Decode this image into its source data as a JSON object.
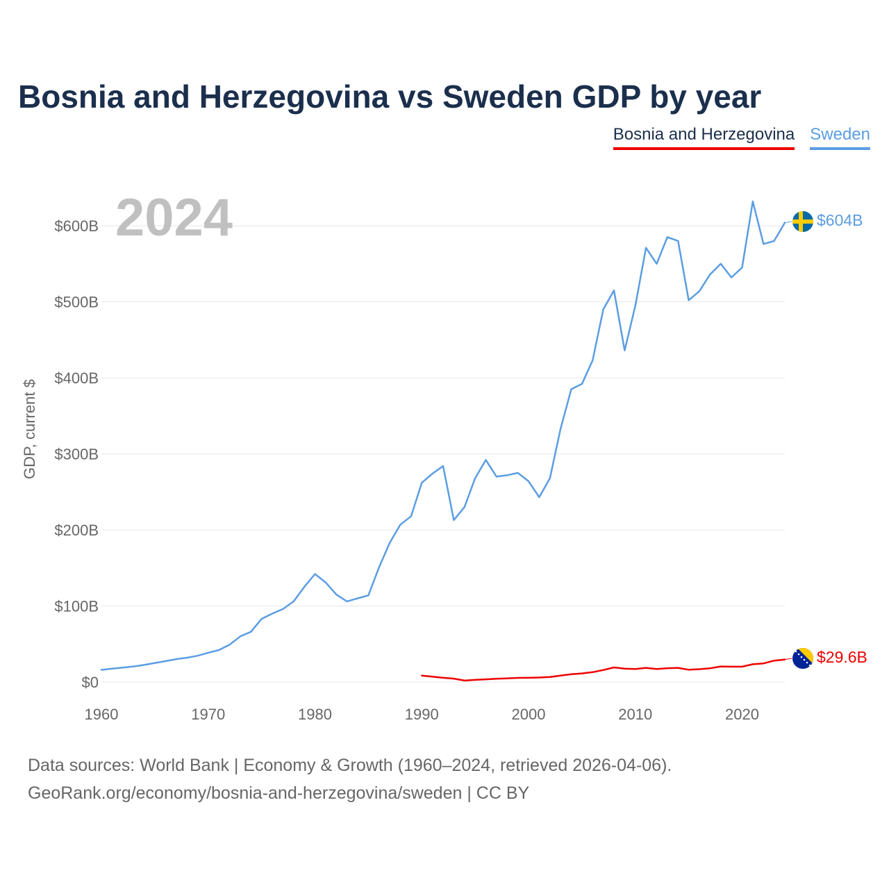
{
  "title": "Bosnia and Herzegovina vs Sweden GDP by year",
  "legend": {
    "bosnia": "Bosnia and Herzegovina",
    "sweden": "Sweden"
  },
  "footer": {
    "line1": "Data sources: World Bank | Economy & Growth (1960–2024, retrieved 2026-04-06).",
    "line2": "GeoRank.org/economy/bosnia-and-herzegovina/sweden | CC BY"
  },
  "colors": {
    "bosnia": "#ee0000",
    "sweden": "#5b9de3",
    "grid": "#e6e6e6",
    "text": "#666666"
  },
  "chart_data": {
    "type": "line",
    "title": "Bosnia and Herzegovina vs Sweden GDP by year",
    "year_label": "2024",
    "ylabel": "GDP, current $",
    "xlim": [
      1960,
      2024
    ],
    "ylim": [
      0,
      600
    ],
    "y_unit": "billion USD",
    "x_ticks": [
      1960,
      1970,
      1980,
      1990,
      2000,
      2010,
      2020
    ],
    "y_ticks": [
      {
        "value": 0,
        "label": "$0"
      },
      {
        "value": 100,
        "label": "$100B"
      },
      {
        "value": 200,
        "label": "$200B"
      },
      {
        "value": 300,
        "label": "$300B"
      },
      {
        "value": 400,
        "label": "$400B"
      },
      {
        "value": 500,
        "label": "$500B"
      },
      {
        "value": 600,
        "label": "$600B"
      }
    ],
    "series": [
      {
        "name": "Sweden",
        "key": "sweden",
        "end_label": "$604B",
        "x": [
          1960,
          1961,
          1962,
          1963,
          1964,
          1965,
          1966,
          1967,
          1968,
          1969,
          1970,
          1971,
          1972,
          1973,
          1974,
          1975,
          1976,
          1977,
          1978,
          1979,
          1980,
          1981,
          1982,
          1983,
          1984,
          1985,
          1986,
          1987,
          1988,
          1989,
          1990,
          1991,
          1992,
          1993,
          1994,
          1995,
          1996,
          1997,
          1998,
          1999,
          2000,
          2001,
          2002,
          2003,
          2004,
          2005,
          2006,
          2007,
          2008,
          2009,
          2010,
          2011,
          2012,
          2013,
          2014,
          2015,
          2016,
          2017,
          2018,
          2019,
          2020,
          2021,
          2022,
          2023,
          2024
        ],
        "values": [
          16,
          17.5,
          19,
          20.5,
          22.5,
          25,
          27.5,
          30,
          32,
          34.5,
          38.5,
          42,
          49,
          60,
          66,
          83,
          90,
          96,
          106,
          125,
          142,
          131,
          115,
          106,
          110,
          114,
          151,
          183,
          207,
          218,
          262,
          274,
          284,
          213,
          230,
          268,
          292,
          270,
          272,
          275,
          264,
          243,
          268,
          333,
          385,
          392,
          423,
          490,
          515,
          436,
          495,
          571,
          550,
          585,
          580,
          502,
          514,
          536,
          550,
          532,
          545,
          632,
          576,
          580,
          604
        ]
      },
      {
        "name": "Bosnia and Herzegovina",
        "key": "bosnia",
        "end_label": "$29.6B",
        "x": [
          1990,
          1991,
          1992,
          1993,
          1994,
          1995,
          1996,
          1997,
          1998,
          1999,
          2000,
          2001,
          2002,
          2003,
          2004,
          2005,
          2006,
          2007,
          2008,
          2009,
          2010,
          2011,
          2012,
          2013,
          2014,
          2015,
          2016,
          2017,
          2018,
          2019,
          2020,
          2021,
          2022,
          2023,
          2024
        ],
        "values": [
          8.5,
          7,
          5.6,
          4.5,
          1.9,
          2.8,
          3.6,
          4.4,
          4.8,
          5.5,
          5.6,
          5.9,
          6.7,
          8.5,
          10.3,
          11.3,
          13,
          15.8,
          19.2,
          17.6,
          17.2,
          18.6,
          17.2,
          18.2,
          18.6,
          16.2,
          16.9,
          18.1,
          20.5,
          20.2,
          20.2,
          23.4,
          24.5,
          28.1,
          29.6
        ]
      }
    ]
  }
}
